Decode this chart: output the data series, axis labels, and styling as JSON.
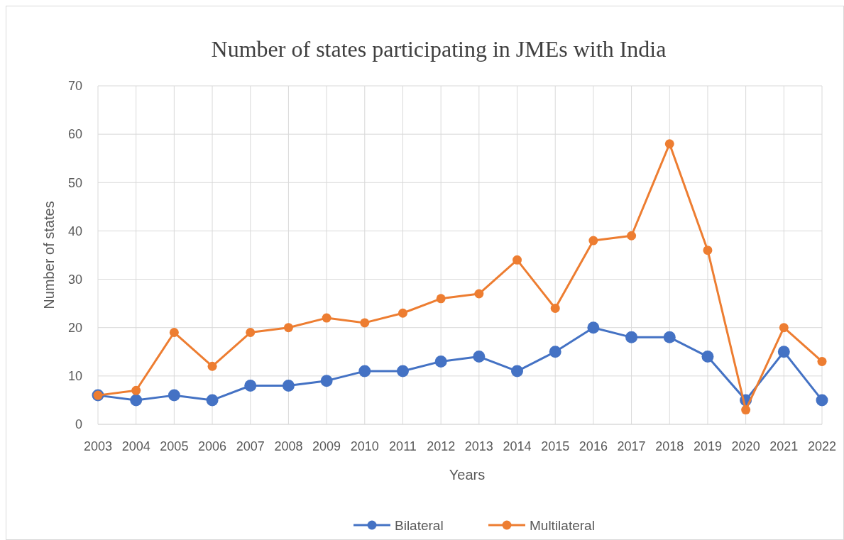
{
  "chart_data": {
    "type": "line",
    "title": "Number of states participating in JMEs with India",
    "xlabel": "Years",
    "ylabel": "Number of states",
    "categories": [
      "2003",
      "2004",
      "2005",
      "2006",
      "2007",
      "2008",
      "2009",
      "2010",
      "2011",
      "2012",
      "2013",
      "2014",
      "2015",
      "2016",
      "2017",
      "2018",
      "2019",
      "2020",
      "2021",
      "2022"
    ],
    "series": [
      {
        "name": "Bilateral",
        "color": "#4472c4",
        "values": [
          6,
          5,
          6,
          5,
          8,
          8,
          9,
          11,
          11,
          13,
          14,
          11,
          15,
          20,
          18,
          18,
          14,
          5,
          15,
          5
        ]
      },
      {
        "name": "Multilateral",
        "color": "#ed7d31",
        "values": [
          6,
          7,
          19,
          12,
          19,
          20,
          22,
          21,
          23,
          26,
          27,
          34,
          24,
          38,
          39,
          58,
          36,
          3,
          20,
          13
        ]
      }
    ],
    "ylim": [
      0,
      70
    ],
    "yticks": [
      0,
      10,
      20,
      30,
      40,
      50,
      60,
      70
    ],
    "grid": true,
    "legend": "bottom",
    "marker": "circle",
    "line_style": "solid"
  }
}
